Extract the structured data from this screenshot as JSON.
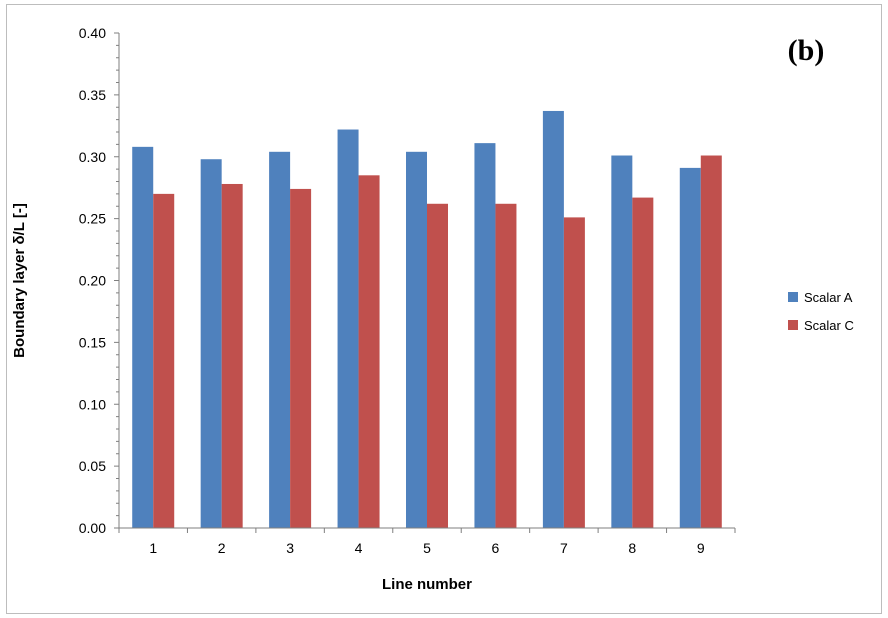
{
  "chart_data": {
    "type": "bar",
    "categories": [
      "1",
      "2",
      "3",
      "4",
      "5",
      "6",
      "7",
      "8",
      "9"
    ],
    "series": [
      {
        "name": "Scalar A",
        "color": "#4f81bd",
        "values": [
          0.308,
          0.298,
          0.304,
          0.322,
          0.304,
          0.311,
          0.337,
          0.301,
          0.291
        ]
      },
      {
        "name": "Scalar C",
        "color": "#c0504d",
        "values": [
          0.27,
          0.278,
          0.274,
          0.285,
          0.262,
          0.262,
          0.251,
          0.267,
          0.301
        ]
      }
    ],
    "yticks": [
      "0.00",
      "0.05",
      "0.10",
      "0.15",
      "0.20",
      "0.25",
      "0.30",
      "0.35",
      "0.40"
    ],
    "ylim": [
      0,
      0.4
    ],
    "xlabel": "Line number",
    "ylabel": "Boundary layer δ/L [-]",
    "annotation": "(b)",
    "grid": false,
    "legend_position": "right"
  }
}
